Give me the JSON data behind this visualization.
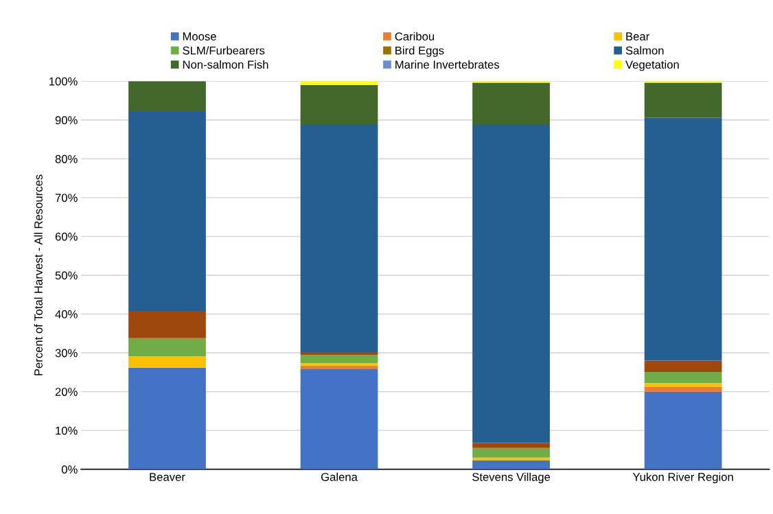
{
  "chart_data": {
    "type": "bar",
    "stacked": true,
    "ylabel": "Percent of Total Harvest - All Resources",
    "categories": [
      "Beaver",
      "Galena",
      "Stevens Village",
      "Yukon River Region"
    ],
    "series": [
      {
        "name": "Moose",
        "color": "#4472c4",
        "values": [
          26.2,
          25.9,
          2.3,
          20.0
        ]
      },
      {
        "name": "Caribou",
        "color": "#ed7d31",
        "values": [
          0,
          0.8,
          0,
          1.3
        ]
      },
      {
        "name": "Bear",
        "color": "#ffc000",
        "values": [
          2.9,
          0.7,
          0.7,
          0.9
        ]
      },
      {
        "name": "SLM/Furbearers",
        "color": "#70ad47",
        "values": [
          4.7,
          2.0,
          2.5,
          2.9
        ]
      },
      {
        "name": "Bird Eggs",
        "color": "#997300",
        "values": [
          0,
          0,
          0,
          0
        ]
      },
      {
        "color": "#9e480e",
        "values": [
          7.0,
          0.8,
          1.3,
          2.9
        ]
      },
      {
        "name": "Salmon",
        "color": "#255e91",
        "values": [
          51.5,
          58.7,
          82.1,
          62.6
        ]
      },
      {
        "name": "Non-salmon Fish",
        "color": "#43682b",
        "values": [
          7.7,
          10.1,
          10.7,
          9.0
        ]
      },
      {
        "name": "Marine Invertebrates",
        "color": "#698ed0",
        "values": [
          0,
          0,
          0,
          0
        ]
      },
      {
        "name": "Vegetation",
        "color": "#ffff00",
        "values": [
          0,
          1.0,
          0.4,
          0.4
        ]
      }
    ],
    "ylim": [
      0,
      100
    ],
    "yticks": [
      {
        "value": 0,
        "label": "0%"
      },
      {
        "value": 10,
        "label": "10%"
      },
      {
        "value": 20,
        "label": "20%"
      },
      {
        "value": 30,
        "label": "30%"
      },
      {
        "value": 40,
        "label": "40%"
      },
      {
        "value": 50,
        "label": "50%"
      },
      {
        "value": 60,
        "label": "60%"
      },
      {
        "value": 70,
        "label": "70%"
      },
      {
        "value": 80,
        "label": "80%"
      },
      {
        "value": 90,
        "label": "90%"
      },
      {
        "value": 100,
        "label": "100%"
      }
    ],
    "grid": "y",
    "legend": "top"
  }
}
